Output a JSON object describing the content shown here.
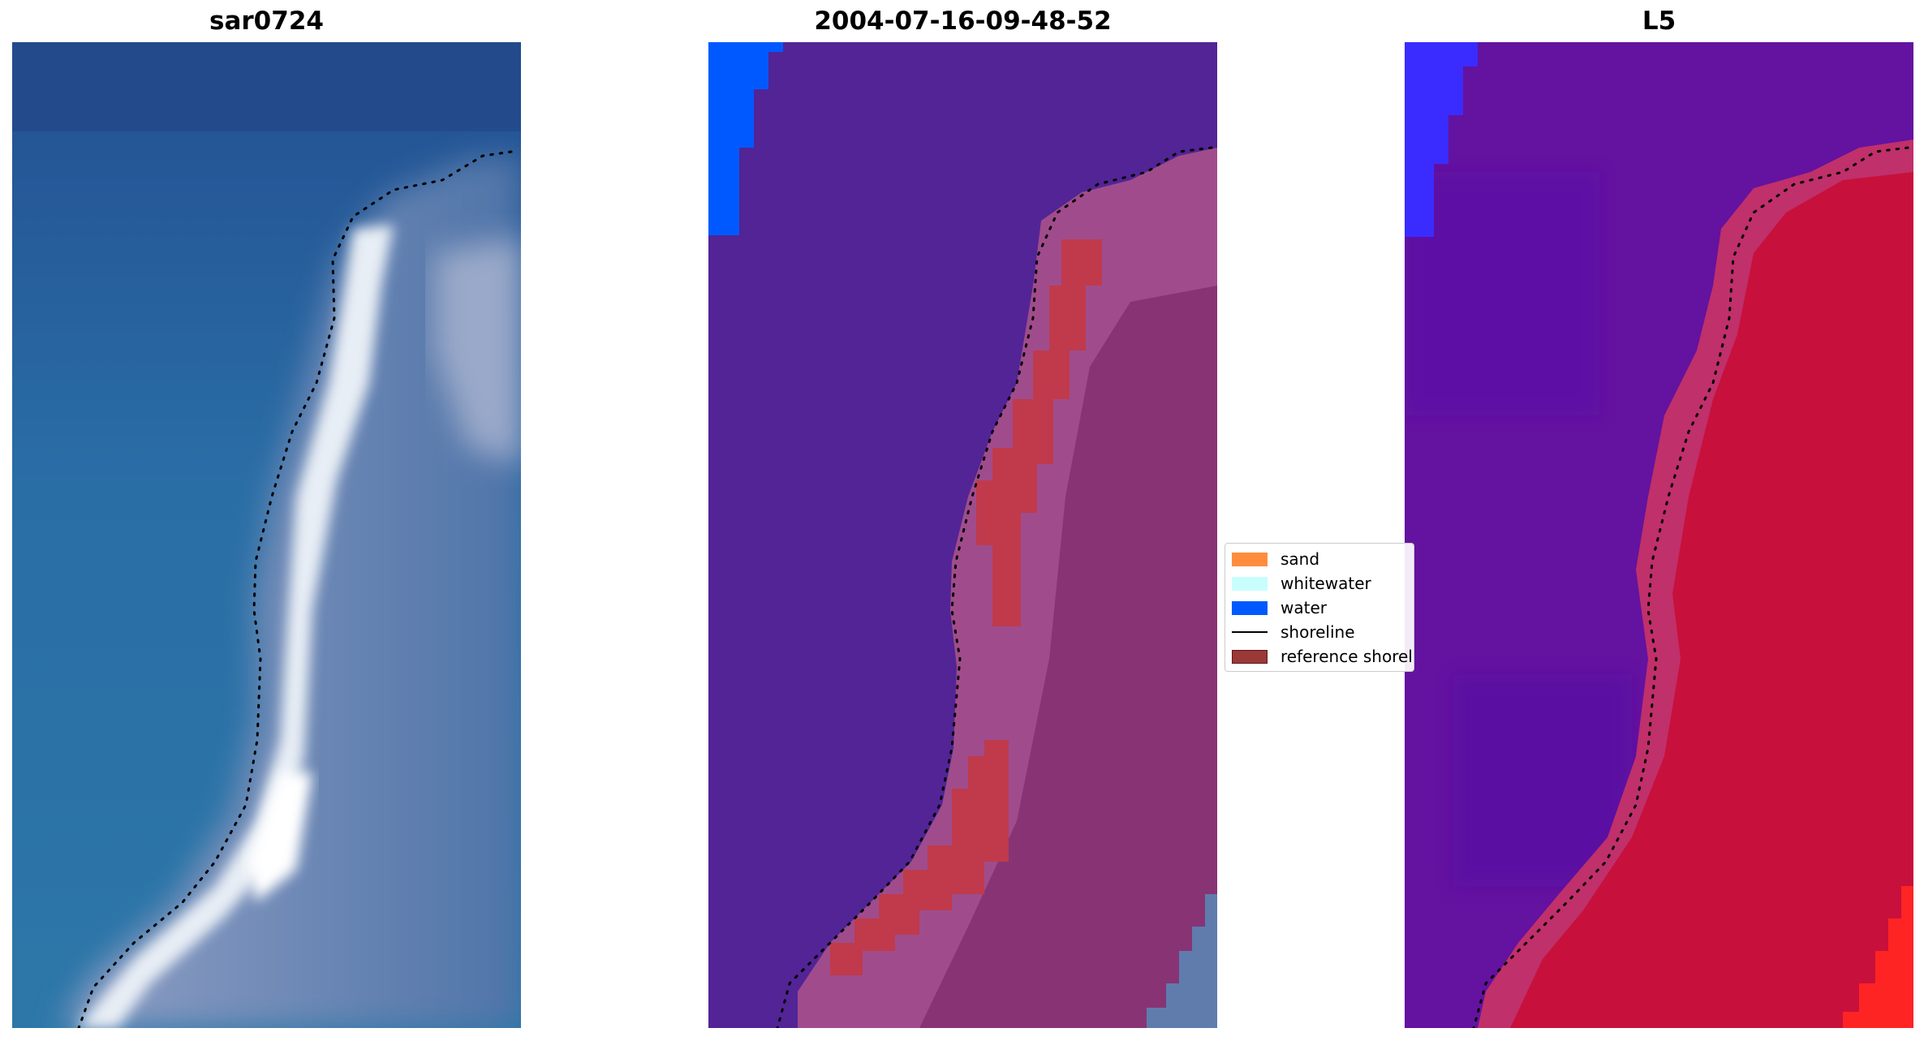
{
  "panels": [
    {
      "title": "sar0724",
      "style": "rgb"
    },
    {
      "title": "2004-07-16-09-48-52",
      "style": "classified"
    },
    {
      "title": "L5",
      "style": "mndwi"
    }
  ],
  "legend": {
    "items": [
      {
        "label": "sand",
        "color": "#ff8c3c",
        "kind": "patch"
      },
      {
        "label": "whitewater",
        "color": "#c8fefe",
        "kind": "patch"
      },
      {
        "label": "water",
        "color": "#0059ff",
        "kind": "patch"
      },
      {
        "label": "shoreline",
        "color": "#000000",
        "kind": "line"
      },
      {
        "label": "reference shoreline",
        "color": "#9b3838",
        "kind": "patch"
      }
    ]
  }
}
